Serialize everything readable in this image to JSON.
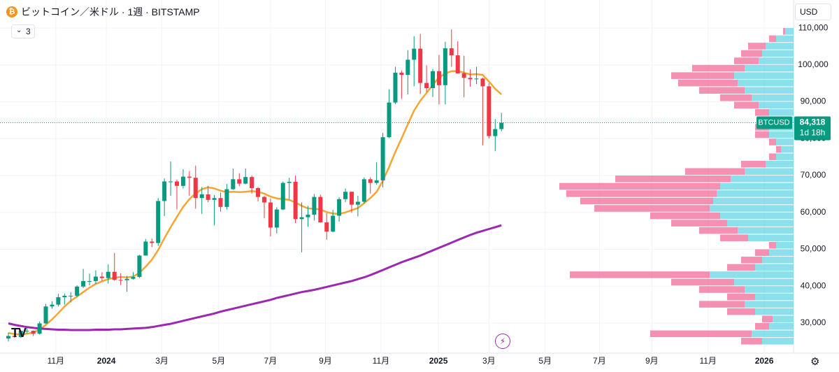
{
  "chart_data": {
    "type": "candlestick",
    "title": "ビットコイン／米ドル · 1週 · BITSTAMP",
    "indicator_count": "3",
    "currency": "USD",
    "symbol": "BTCUSD",
    "countdown": "1d 18h",
    "last_price": {
      "value": 84318,
      "label": "84,318"
    },
    "up_color": "#089981",
    "down_color": "#f23645",
    "xlim": [
      -1.34,
      125.8
    ],
    "xticks": [
      {
        "value": 7.6,
        "label": "11月"
      },
      {
        "value": 15.7,
        "label": "2024"
      },
      {
        "value": 24.6,
        "label": "3月"
      },
      {
        "value": 33.7,
        "label": "5月"
      },
      {
        "value": 42,
        "label": "7月"
      },
      {
        "value": 50.8,
        "label": "9月"
      },
      {
        "value": 59.7,
        "label": "11月"
      },
      {
        "value": 68.9,
        "label": "2025"
      },
      {
        "value": 77,
        "label": "3月"
      },
      {
        "value": 86,
        "label": "5月"
      },
      {
        "value": 94.7,
        "label": "7月"
      },
      {
        "value": 103.1,
        "label": "9月"
      },
      {
        "value": 112.1,
        "label": "11月"
      },
      {
        "value": 121.1,
        "label": "2026"
      }
    ],
    "ylim": [
      20900,
      117600
    ],
    "yticks": [
      {
        "value": 30000,
        "label": "30,000"
      },
      {
        "value": 40000,
        "label": "40,000"
      },
      {
        "value": 50000,
        "label": "50,000"
      },
      {
        "value": 60000,
        "label": "60,000"
      },
      {
        "value": 70000,
        "label": "70,000"
      },
      {
        "value": 80000,
        "label": "80,000"
      },
      {
        "value": 90000,
        "label": "90,000"
      },
      {
        "value": 100000,
        "label": "100,000"
      },
      {
        "value": 110000,
        "label": "110,000"
      }
    ],
    "open": [
      25800,
      26500,
      26200,
      27900,
      27900,
      27100,
      29900,
      34500,
      35000,
      37000,
      37400,
      37400,
      39900,
      41400,
      41400,
      42600,
      42200,
      43900,
      41700,
      41600,
      42000,
      42500,
      48300,
      52100,
      51700,
      63100,
      68400,
      68400,
      67200,
      69700,
      69400,
      63900,
      64900,
      63400,
      63900,
      61500,
      66300,
      69000,
      67800,
      69600,
      66600,
      64200,
      62700,
      55900,
      60800,
      68000,
      68300,
      58200,
      58700,
      59400,
      64200,
      57300,
      54800,
      59100,
      63600,
      65600,
      62100,
      62900,
      69000,
      68000,
      68700,
      80400,
      89800,
      97900,
      97300,
      101400,
      104400,
      95100,
      93700,
      98300,
      94500,
      104500,
      102600,
      97700,
      96500,
      96100,
      96300,
      94200,
      80700,
      82600
    ],
    "high": [
      27400,
      27400,
      28000,
      28600,
      28000,
      30400,
      35200,
      35900,
      37900,
      38000,
      38400,
      40200,
      44700,
      43400,
      44300,
      43800,
      45900,
      49000,
      43500,
      42800,
      43800,
      48500,
      52800,
      52900,
      63900,
      69200,
      73800,
      68900,
      71700,
      71200,
      72700,
      66900,
      67200,
      64700,
      65400,
      67700,
      71900,
      70600,
      71900,
      70000,
      66900,
      64500,
      63800,
      61400,
      68400,
      69400,
      70000,
      62700,
      61800,
      65000,
      64800,
      59800,
      60700,
      64100,
      66500,
      65600,
      64500,
      69500,
      69500,
      73600,
      81600,
      93400,
      99500,
      98500,
      104000,
      107800,
      108400,
      99900,
      98900,
      102700,
      106300,
      109600,
      106400,
      102500,
      98800,
      99500,
      96500,
      95000,
      85300,
      87000
    ],
    "low": [
      25000,
      26000,
      26000,
      27200,
      26500,
      26900,
      29800,
      33900,
      34500,
      35000,
      35600,
      37000,
      39500,
      40200,
      40600,
      41400,
      40700,
      41500,
      40300,
      38500,
      41800,
      42200,
      48300,
      50600,
      50900,
      59000,
      64500,
      60800,
      66500,
      64500,
      61000,
      59600,
      62800,
      56500,
      60200,
      60800,
      66100,
      67100,
      67600,
      65100,
      63000,
      58400,
      53500,
      54300,
      60600,
      63500,
      57100,
      49200,
      56100,
      57800,
      57200,
      52600,
      54600,
      57500,
      62800,
      59900,
      58900,
      62400,
      65100,
      67500,
      66800,
      80200,
      89400,
      90800,
      92000,
      94200,
      92100,
      92600,
      91300,
      89300,
      89300,
      99500,
      97700,
      91200,
      94100,
      94800,
      78200,
      80000,
      76600,
      82000
    ],
    "close": [
      26500,
      26200,
      27900,
      27900,
      27100,
      29900,
      34500,
      35000,
      37000,
      37400,
      37400,
      39900,
      41400,
      41400,
      42600,
      42200,
      43900,
      41700,
      41600,
      42000,
      42500,
      48300,
      52100,
      51700,
      63100,
      68400,
      68400,
      67200,
      69700,
      69400,
      63900,
      64900,
      63400,
      63900,
      61500,
      66300,
      69000,
      67800,
      69600,
      66600,
      64200,
      62700,
      55900,
      60800,
      68000,
      68300,
      58200,
      58700,
      59400,
      64200,
      57300,
      54800,
      59100,
      63600,
      65600,
      62100,
      62900,
      69000,
      68000,
      68700,
      80400,
      89800,
      97900,
      97300,
      101400,
      104400,
      95100,
      93700,
      98300,
      94500,
      104500,
      102600,
      97700,
      96500,
      96100,
      96300,
      94200,
      80700,
      82600,
      84318
    ],
    "series": [
      {
        "color": "#f7a530",
        "values": [
          27300,
          27000,
          26900,
          27100,
          27500,
          28200,
          29500,
          31000,
          32700,
          34500,
          36000,
          37200,
          38400,
          39600,
          40600,
          41300,
          41900,
          42300,
          42500,
          42400,
          42600,
          43600,
          45300,
          47200,
          49800,
          53000,
          56000,
          58800,
          61500,
          63600,
          65200,
          66300,
          66800,
          66500,
          65900,
          65500,
          65600,
          65500,
          65600,
          65800,
          65600,
          65100,
          64300,
          63800,
          63600,
          63400,
          62700,
          61800,
          61100,
          61000,
          60800,
          60100,
          59700,
          59600,
          60000,
          60600,
          61200,
          62500,
          63900,
          65600,
          68600,
          72300,
          76400,
          80100,
          83900,
          87600,
          90300,
          92400,
          94600,
          96600,
          97700,
          98300,
          98300,
          97900,
          97400,
          97500,
          97300,
          95500,
          93500,
          92000
        ]
      },
      {
        "color": "#9c27b0",
        "values": [
          29900,
          29500,
          29200,
          28900,
          28700,
          28500,
          28400,
          28300,
          28200,
          28200,
          28100,
          28100,
          28100,
          28100,
          28200,
          28200,
          28200,
          28300,
          28300,
          28400,
          28500,
          28600,
          28700,
          28900,
          29200,
          29500,
          29800,
          30200,
          30600,
          31000,
          31400,
          31800,
          32200,
          32600,
          33100,
          33500,
          33900,
          34300,
          34700,
          35100,
          35500,
          35900,
          36300,
          36800,
          37200,
          37600,
          38000,
          38400,
          38700,
          39000,
          39400,
          39800,
          40200,
          40600,
          41000,
          41400,
          41900,
          42400,
          43000,
          43700,
          44400,
          45100,
          45800,
          46500,
          47100,
          47700,
          48300,
          49000,
          49700,
          50400,
          51100,
          51800,
          52500,
          53200,
          53900,
          54500,
          55000,
          55500,
          56000,
          56500
        ]
      }
    ],
    "volume_profile": {
      "bins": [
        24000,
        26000,
        28000,
        30000,
        32000,
        34000,
        36000,
        38000,
        40000,
        42000,
        44000,
        46000,
        48000,
        50000,
        52000,
        54000,
        56000,
        58000,
        60000,
        62000,
        64000,
        66000,
        68000,
        70000,
        72000,
        74000,
        76000,
        78000,
        80000,
        82000,
        84000,
        86000,
        88000,
        90000,
        92000,
        94000,
        96000,
        98000,
        100000,
        102000,
        104000,
        106000,
        108000,
        110000
      ],
      "up": [
        45,
        60,
        35,
        30,
        55,
        70,
        55,
        70,
        85,
        120,
        55,
        45,
        35,
        25,
        65,
        80,
        95,
        105,
        120,
        115,
        110,
        105,
        90,
        70,
        40,
        25,
        18,
        25,
        35,
        35,
        30,
        35,
        50,
        60,
        70,
        80,
        85,
        70,
        50,
        45,
        40,
        25,
        12
      ],
      "down": [
        30,
        145,
        20,
        15,
        40,
        65,
        40,
        65,
        90,
        200,
        40,
        30,
        20,
        10,
        40,
        55,
        80,
        100,
        165,
        190,
        215,
        230,
        165,
        85,
        35,
        10,
        7,
        10,
        20,
        20,
        15,
        20,
        35,
        45,
        65,
        85,
        90,
        75,
        35,
        30,
        25,
        10,
        3
      ],
      "up_color": "#4dd0e1",
      "down_color": "#f06292"
    }
  }
}
